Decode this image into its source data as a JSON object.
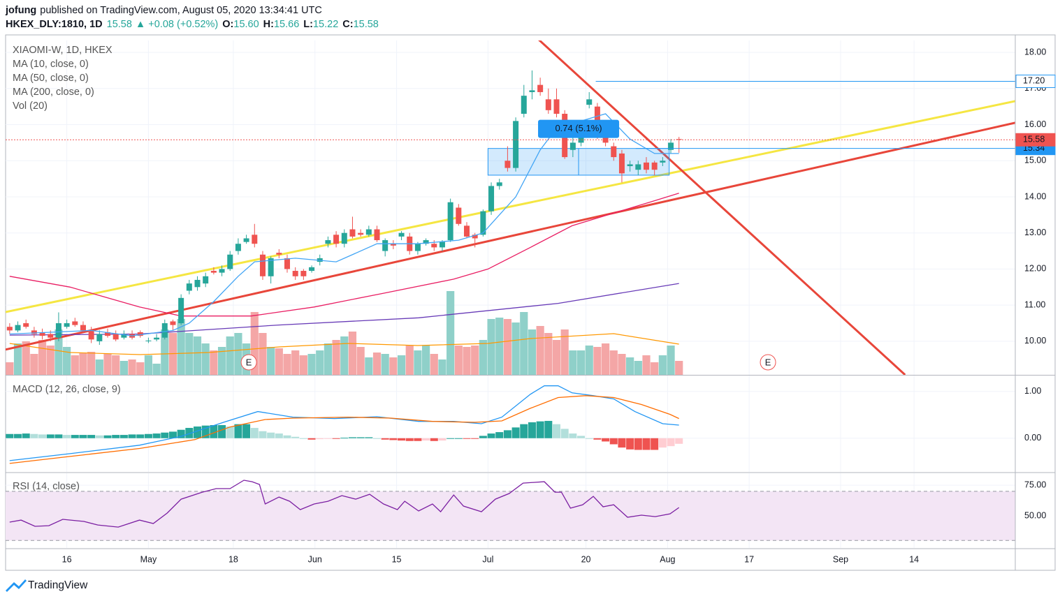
{
  "header": {
    "author": "jofung",
    "published": "published on TradingView.com, August 05, 2020 13:34:41 UTC",
    "symbol": "HKEX_DLY:1810, 1D",
    "last": "15.58",
    "change": "▲ +0.08 (+0.52%)",
    "ohlc": [
      {
        "label": "O:",
        "value": "15.60"
      },
      {
        "label": "H:",
        "value": "15.66"
      },
      {
        "label": "L:",
        "value": "15.22"
      },
      {
        "label": "C:",
        "value": "15.58"
      }
    ]
  },
  "chart_data": [
    {
      "type": "candlestick",
      "title": "XIAOMI-W, 1D, HKEX",
      "up_color": "#26a69a",
      "down_color": "#ef5350",
      "grid": true,
      "xlim": [
        -0.5,
        123.2
      ],
      "xticks": [
        {
          "value": 7,
          "label": "16"
        },
        {
          "value": 17,
          "label": "May"
        },
        {
          "value": 27.4,
          "label": "18"
        },
        {
          "value": 37.4,
          "label": "Jun"
        },
        {
          "value": 47.4,
          "label": "15"
        },
        {
          "value": 58.6,
          "label": "Jul"
        },
        {
          "value": 70.6,
          "label": "20"
        },
        {
          "value": 80.6,
          "label": "Aug"
        },
        {
          "value": 90.6,
          "label": "17"
        },
        {
          "value": 101.8,
          "label": "Sep"
        },
        {
          "value": 110.8,
          "label": "14"
        }
      ],
      "ylim": [
        9.07,
        18.33
      ],
      "yticks": [
        {
          "value": 10,
          "label": "10.00"
        },
        {
          "value": 11,
          "label": "11.00"
        },
        {
          "value": 12,
          "label": "12.00"
        },
        {
          "value": 13,
          "label": "13.00"
        },
        {
          "value": 14,
          "label": "14.00"
        },
        {
          "value": 15,
          "label": "15.00"
        },
        {
          "value": 16,
          "label": "16.00"
        },
        {
          "value": 17,
          "label": "17.00"
        },
        {
          "value": 18,
          "label": "18.00"
        }
      ],
      "open": [
        10.4,
        10.3,
        10.5,
        10.3,
        10.25,
        10.2,
        10.1,
        10.4,
        10.55,
        10.45,
        10.3,
        10.0,
        10.25,
        10.2,
        10.1,
        10.2,
        10.25,
        10.0,
        10.05,
        10.1,
        10.55,
        10.5,
        11.4,
        11.5,
        11.6,
        11.95,
        11.9,
        12.0,
        12.5,
        12.75,
        12.95,
        12.4,
        11.8,
        12.45,
        12.3,
        11.95,
        11.95,
        11.95,
        12.2,
        12.7,
        12.95,
        12.7,
        13.1,
        13.0,
        12.95,
        13.1,
        12.5,
        12.7,
        12.9,
        12.9,
        12.5,
        12.7,
        12.7,
        12.6,
        12.8,
        13.7,
        13.2,
        12.95,
        12.95,
        13.6,
        14.3,
        15.0,
        14.8,
        16.3,
        16.9,
        17.1,
        16.7,
        16.7,
        16.3,
        15.3,
        15.5,
        16.55,
        16.5,
        15.7,
        15.4,
        15.2,
        14.85,
        14.75,
        14.95,
        14.95,
        14.95,
        15.3,
        15.6
      ],
      "high": [
        10.5,
        10.55,
        10.6,
        10.4,
        10.35,
        10.3,
        10.8,
        10.6,
        10.65,
        10.55,
        10.4,
        10.3,
        10.35,
        10.3,
        10.3,
        10.3,
        10.3,
        10.1,
        10.2,
        10.6,
        10.6,
        11.3,
        11.7,
        11.8,
        11.9,
        12.05,
        12.1,
        12.5,
        12.85,
        12.95,
        13.25,
        12.5,
        12.35,
        12.55,
        12.4,
        12.05,
        12.0,
        12.1,
        12.4,
        12.9,
        13.05,
        13.1,
        13.45,
        13.1,
        13.2,
        13.2,
        12.85,
        12.8,
        13.05,
        13.0,
        12.75,
        12.85,
        12.8,
        12.8,
        13.95,
        13.8,
        13.3,
        13.0,
        13.65,
        14.4,
        14.5,
        15.4,
        16.2,
        17.1,
        17.5,
        17.3,
        17.0,
        17.0,
        16.4,
        15.7,
        15.9,
        16.9,
        16.6,
        15.8,
        15.5,
        15.3,
        15.0,
        15.0,
        15.1,
        15.0,
        15.1,
        15.6,
        15.66
      ],
      "low": [
        10.2,
        10.25,
        10.35,
        10.1,
        10.05,
        10.0,
        10.0,
        10.35,
        10.4,
        10.25,
        9.95,
        9.9,
        10.1,
        10.0,
        10.05,
        10.05,
        10.1,
        9.95,
        10.0,
        10.05,
        10.3,
        10.45,
        11.3,
        11.4,
        11.5,
        11.85,
        11.8,
        11.95,
        12.4,
        12.7,
        12.6,
        11.7,
        11.6,
        12.3,
        11.9,
        11.7,
        11.7,
        11.9,
        12.1,
        12.6,
        12.6,
        12.6,
        12.85,
        12.9,
        12.9,
        12.75,
        12.35,
        12.55,
        12.8,
        12.4,
        12.4,
        12.65,
        12.5,
        12.5,
        12.75,
        13.2,
        12.85,
        12.6,
        12.9,
        13.5,
        14.2,
        14.7,
        14.7,
        16.2,
        16.7,
        16.8,
        16.3,
        16.2,
        15.05,
        15.1,
        15.4,
        16.45,
        15.6,
        15.4,
        15.0,
        14.4,
        14.7,
        14.6,
        14.65,
        14.6,
        14.85,
        15.2,
        15.22
      ],
      "close": [
        10.3,
        10.45,
        10.4,
        10.2,
        10.15,
        10.1,
        10.5,
        10.5,
        10.45,
        10.3,
        10.05,
        10.2,
        10.15,
        10.05,
        10.2,
        10.1,
        10.15,
        10.02,
        10.1,
        10.5,
        10.45,
        11.2,
        11.6,
        11.7,
        11.8,
        11.9,
        12.0,
        12.4,
        12.7,
        12.85,
        12.7,
        11.8,
        12.3,
        12.4,
        12.0,
        11.8,
        11.8,
        12.05,
        12.3,
        12.8,
        12.7,
        13.0,
        12.9,
        12.95,
        13.1,
        12.8,
        12.8,
        12.65,
        13.0,
        12.5,
        12.7,
        12.8,
        12.6,
        12.75,
        13.85,
        13.25,
        12.9,
        12.85,
        13.6,
        14.3,
        14.4,
        14.8,
        16.1,
        16.8,
        16.95,
        16.9,
        16.4,
        16.3,
        15.1,
        15.5,
        15.8,
        16.7,
        15.7,
        15.5,
        15.1,
        14.65,
        14.9,
        14.9,
        14.75,
        14.75,
        15.0,
        15.5,
        15.58
      ],
      "overlays": [
        {
          "name": "MA (10, close, 0)",
          "color": "#42a5f5",
          "x": [
            0,
            5,
            10,
            15,
            20,
            22,
            25,
            28,
            30,
            35,
            40,
            45,
            50,
            55,
            58,
            60,
            62,
            65,
            67,
            70,
            73,
            76,
            79,
            82
          ],
          "values": [
            10.2,
            10.25,
            10.3,
            10.15,
            10.3,
            10.5,
            11.1,
            11.8,
            12.2,
            12.3,
            12.2,
            12.7,
            12.7,
            12.8,
            13.0,
            13.5,
            14.0,
            15.3,
            15.9,
            16.1,
            16.3,
            15.6,
            15.2,
            15.2
          ]
        },
        {
          "name": "MA (50, close, 0)",
          "color": "#e91e63",
          "x": [
            0,
            7.4,
            15.9,
            21,
            24.4,
            29.6,
            37.3,
            45.8,
            54.4,
            58.6,
            63.8,
            68.9,
            74,
            79.1,
            82
          ],
          "values": [
            11.8,
            11.5,
            10.95,
            10.7,
            10.7,
            10.7,
            10.95,
            11.33,
            11.72,
            12.0,
            12.6,
            13.2,
            13.55,
            13.9,
            14.1
          ]
        },
        {
          "name": "MA (200, close, 0)",
          "color": "#673ab7",
          "x": [
            0,
            15.9,
            33,
            50.1,
            67.2,
            82
          ],
          "values": [
            10.17,
            10.2,
            10.45,
            10.65,
            11.05,
            11.6
          ]
        }
      ],
      "volume": {
        "name": "Vol (20)",
        "up_color": "#8fd0c9",
        "down_color": "#f4a6a6",
        "vlim": [
          0,
          130
        ],
        "values": [
          18,
          45,
          48,
          30,
          50,
          42,
          65,
          40,
          28,
          32,
          33,
          22,
          30,
          28,
          20,
          22,
          18,
          28,
          16,
          65,
          60,
          80,
          60,
          55,
          45,
          35,
          40,
          55,
          60,
          45,
          90,
          60,
          40,
          38,
          30,
          35,
          28,
          30,
          35,
          45,
          50,
          55,
          62,
          40,
          25,
          32,
          30,
          25,
          28,
          42,
          35,
          42,
          30,
          22,
          120,
          42,
          40,
          42,
          50,
          80,
          82,
          80,
          75,
          90,
          65,
          70,
          60,
          50,
          65,
          35,
          35,
          42,
          40,
          45,
          35,
          30,
          25,
          20,
          28,
          18,
          28,
          42,
          20
        ],
        "ma": {
          "color": "#ff9800",
          "x": [
            0,
            7.4,
            16,
            24.4,
            33,
            41.5,
            50,
            58.6,
            63.8,
            74,
            82
          ],
          "values": [
            45,
            32,
            29,
            32,
            40,
            45,
            42,
            45,
            52,
            59,
            44
          ]
        }
      },
      "trendlines": [
        {
          "color": "#f5e642",
          "x": [
            -0.5,
            123.2
          ],
          "values": [
            10.81,
            16.65
          ]
        },
        {
          "color": "#e8463a",
          "x": [
            -0.5,
            123.2
          ],
          "values": [
            9.77,
            16.05
          ]
        },
        {
          "color": "#e8463a",
          "x": [
            64.4,
            109.7
          ],
          "values": [
            18.44,
            9.07
          ]
        }
      ],
      "hlines": [
        {
          "value": 17.2,
          "label": "17.20",
          "x_start": 71.8,
          "color": "#2196f3",
          "label_fill": "#ffffff",
          "label_color": "#131722"
        },
        {
          "value": 15.34,
          "label": "15.34",
          "x_start": 76.7,
          "color": "#2196f3",
          "label_fill": "#2196f3",
          "label_color": "#ffffff"
        },
        {
          "value": 15.58,
          "label": "15.58",
          "x_start": -0.5,
          "color": "#ef5350",
          "label_fill": "#ef5350",
          "label_color": "#ffffff",
          "dotted": true
        }
      ],
      "measure": {
        "x": [
          58.6,
          80.8
        ],
        "values": [
          15.34,
          14.6
        ],
        "label": "0.74 (5.1%)",
        "color": "#2196f3"
      },
      "events": [
        {
          "x": 29.3,
          "label": "E"
        },
        {
          "x": 92.9,
          "label": "E"
        }
      ]
    },
    {
      "type": "macd",
      "title": "MACD (12, 26, close, 9)",
      "ylim": [
        -0.72,
        1.34
      ],
      "yticks": [
        {
          "value": 0,
          "label": "0.00"
        },
        {
          "value": 1,
          "label": "1.00"
        }
      ],
      "series": [
        {
          "color": "#2196f3",
          "x": [
            0,
            7.4,
            15.9,
            21,
            26.2,
            30.4,
            34.7,
            39.8,
            45,
            50.1,
            54.4,
            57.8,
            60.3,
            63.8,
            65.5,
            67.2,
            68.9,
            71.5,
            74,
            76.6,
            80,
            82
          ],
          "values": [
            -0.48,
            -0.33,
            -0.15,
            0.04,
            0.34,
            0.57,
            0.45,
            0.42,
            0.46,
            0.36,
            0.36,
            0.31,
            0.45,
            0.94,
            1.12,
            1.12,
            0.97,
            0.91,
            0.84,
            0.57,
            0.31,
            0.28
          ]
        },
        {
          "color": "#ff6d00",
          "x": [
            0,
            7.4,
            15.9,
            22.7,
            27,
            31.3,
            34.7,
            41.5,
            46.7,
            51.8,
            57,
            60.3,
            63.8,
            67.2,
            70.6,
            74,
            77.4,
            80.9,
            82
          ],
          "values": [
            -0.54,
            -0.39,
            -0.22,
            -0.03,
            0.24,
            0.4,
            0.43,
            0.45,
            0.43,
            0.36,
            0.34,
            0.37,
            0.64,
            0.87,
            0.91,
            0.87,
            0.72,
            0.51,
            0.42
          ]
        }
      ],
      "histogram": {
        "rising_up": "#26a69a",
        "falling_up": "#b2dfdb",
        "falling_down": "#ef5350",
        "rising_down": "#ffcdd2",
        "values": [
          0.09,
          0.09,
          0.1,
          0.09,
          0.08,
          0.08,
          0.08,
          0.07,
          0.07,
          0.07,
          0.07,
          0.06,
          0.06,
          0.07,
          0.07,
          0.08,
          0.08,
          0.09,
          0.1,
          0.12,
          0.14,
          0.18,
          0.22,
          0.25,
          0.27,
          0.28,
          0.28,
          0.25,
          0.3,
          0.3,
          0.22,
          0.15,
          0.12,
          0.1,
          0.06,
          0.03,
          0.0,
          -0.03,
          -0.02,
          -0.01,
          -0.01,
          0.01,
          0.02,
          0.02,
          0.02,
          0.0,
          -0.03,
          -0.04,
          -0.05,
          -0.06,
          -0.06,
          -0.05,
          -0.06,
          -0.05,
          0.0,
          0.0,
          -0.01,
          -0.01,
          0.05,
          0.1,
          0.13,
          0.17,
          0.23,
          0.3,
          0.34,
          0.36,
          0.37,
          0.3,
          0.2,
          0.1,
          0.05,
          0.0,
          -0.03,
          -0.07,
          -0.13,
          -0.2,
          -0.24,
          -0.25,
          -0.25,
          -0.25,
          -0.2,
          -0.17,
          -0.12
        ]
      }
    },
    {
      "type": "rsi",
      "title": "RSI (14, close)",
      "ylim": [
        23.9,
        84.7
      ],
      "yticks": [
        {
          "value": 50,
          "label": "50.00"
        },
        {
          "value": 75,
          "label": "75.00"
        }
      ],
      "band": [
        30,
        70
      ],
      "band_color": "#f3e5f5",
      "series": [
        {
          "color": "#7b1fa2",
          "x": [
            0,
            1.4,
            3.1,
            4.8,
            6.5,
            9.1,
            10.8,
            13.3,
            15.9,
            17.6,
            19.3,
            21,
            23.6,
            25.3,
            27,
            28.7,
            29.7,
            30.6,
            31.3,
            33,
            34.3,
            35.6,
            37.3,
            39,
            40.7,
            42.4,
            44.1,
            45.8,
            47.5,
            48.4,
            50.1,
            51.8,
            52.8,
            54.4,
            55.6,
            57.8,
            59.5,
            61.2,
            62.9,
            65.5,
            66.8,
            67.6,
            68.7,
            70.2,
            71.5,
            72.7,
            74,
            75.7,
            77.4,
            79.1,
            80.9,
            82
          ],
          "values": [
            44.9,
            46.6,
            41.5,
            42.0,
            47.2,
            45.5,
            42.6,
            40.9,
            46.6,
            43.8,
            52.3,
            63.6,
            69.3,
            72.2,
            72.2,
            79.0,
            77.8,
            75.6,
            59.7,
            65.3,
            61.9,
            55.1,
            59.7,
            61.9,
            66.5,
            63.6,
            67.6,
            59.7,
            55.1,
            61.9,
            54.0,
            59.7,
            53.4,
            67.0,
            58.0,
            53.4,
            63.6,
            68.2,
            76.7,
            77.8,
            69.3,
            69.3,
            56.3,
            59.1,
            65.9,
            57.4,
            59.1,
            48.9,
            50.6,
            49.4,
            51.7,
            56.8
          ]
        }
      ]
    }
  ],
  "footer": {
    "brand": "TradingView"
  }
}
